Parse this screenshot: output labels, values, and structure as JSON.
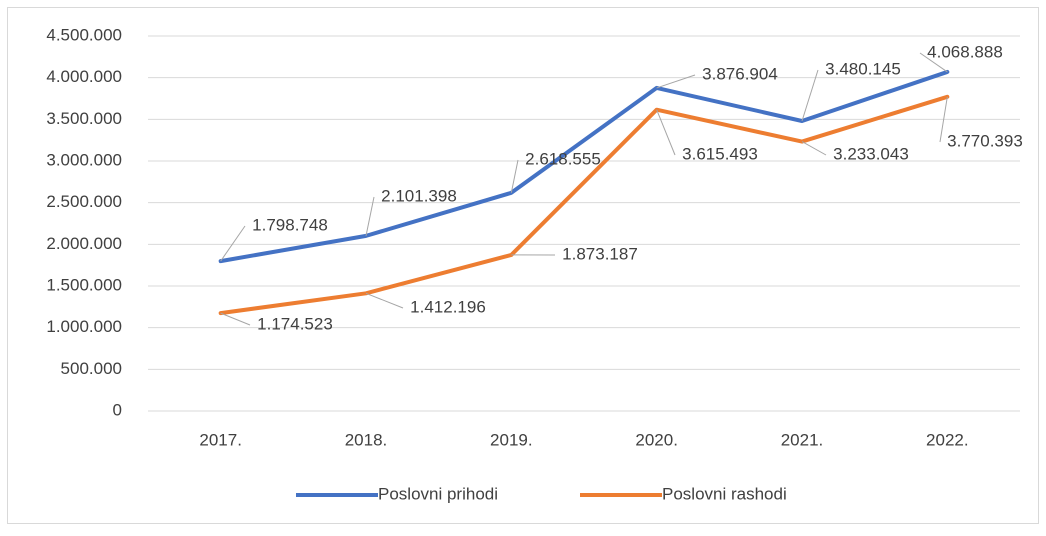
{
  "chart_data": {
    "type": "line",
    "categories": [
      "2017.",
      "2018.",
      "2019.",
      "2020.",
      "2021.",
      "2022."
    ],
    "series": [
      {
        "name": "Poslovni prihodi",
        "color": "#4472c4",
        "values": [
          1798748,
          2101398,
          2618555,
          3876904,
          3480145,
          4068888
        ],
        "value_labels": [
          "1.798.748",
          "2.101.398",
          "2.618.555",
          "3.876.904",
          "3.480.145",
          "4.068.888"
        ]
      },
      {
        "name": "Poslovni rashodi",
        "color": "#ed7d31",
        "values": [
          1174523,
          1412196,
          1873187,
          3615493,
          3233043,
          3770393
        ],
        "value_labels": [
          "1.174.523",
          "1.412.196",
          "1.873.187",
          "3.615.493",
          "3.233.043",
          "3.770.393"
        ]
      }
    ],
    "ylim": [
      0,
      4500000
    ],
    "yticks": [
      0,
      {
        "value": 500000,
        "label": "500.000"
      },
      {
        "value": 1000000,
        "label": "1.000.000"
      },
      {
        "value": 1500000,
        "label": "1.500.000"
      },
      {
        "value": 2000000,
        "label": "2.000.000"
      },
      {
        "value": 2500000,
        "label": "2.500.000"
      },
      {
        "value": 3000000,
        "label": "3.000.000"
      },
      {
        "value": 3500000,
        "label": "3.500.000"
      },
      {
        "value": 4000000,
        "label": "4.000.000"
      },
      {
        "value": 4500000,
        "label": "4.500.000"
      }
    ],
    "grid": true,
    "legend": "bottom"
  }
}
